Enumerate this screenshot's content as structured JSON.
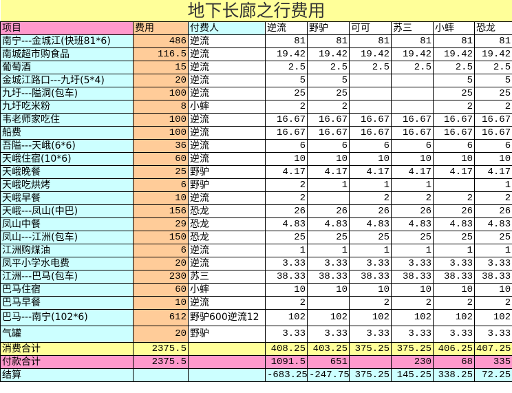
{
  "title": "地下长廊之行费用",
  "headers": {
    "item": "项目",
    "cost": "费用",
    "payer": "付费人",
    "people": [
      "逆流",
      "野驴",
      "可可",
      "苏三",
      "小蟀",
      "恐龙"
    ]
  },
  "rows": [
    {
      "item": "南宁---金城江(快班81*6)",
      "cost": "486",
      "payer": "逆流",
      "shares": [
        "81",
        "81",
        "81",
        "81",
        "81",
        "81"
      ]
    },
    {
      "item": "南城超市购食品",
      "cost": "116.5",
      "payer": "逆流",
      "shares": [
        "19.42",
        "19.42",
        "19.42",
        "19.42",
        "19.42",
        "19.42"
      ]
    },
    {
      "item": "葡萄酒",
      "cost": "15",
      "payer": "逆流",
      "shares": [
        "2.5",
        "2.5",
        "2.5",
        "2.5",
        "2.5",
        "2.5"
      ]
    },
    {
      "item": "金城江路口---九圩(5*4)",
      "cost": "20",
      "payer": "逆流",
      "shares": [
        "5",
        "5",
        "",
        "",
        "5",
        "5"
      ]
    },
    {
      "item": "九圩---隘洞(包车)",
      "cost": "100",
      "payer": "逆流",
      "shares": [
        "25",
        "25",
        "",
        "",
        "25",
        "25"
      ]
    },
    {
      "item": "九圩吃米粉",
      "cost": "8",
      "payer": "小蟀",
      "shares": [
        "2",
        "2",
        "",
        "",
        "2",
        "2"
      ]
    },
    {
      "item": "韦老师家吃住",
      "cost": "100",
      "payer": "逆流",
      "shares": [
        "16.67",
        "16.67",
        "16.67",
        "16.67",
        "16.67",
        "16.67"
      ]
    },
    {
      "item": "船费",
      "cost": "100",
      "payer": "逆流",
      "shares": [
        "16.67",
        "16.67",
        "16.67",
        "16.67",
        "16.67",
        "16.67"
      ]
    },
    {
      "item": "吾隘---天峨(6*6)",
      "cost": "36",
      "payer": "逆流",
      "shares": [
        "6",
        "6",
        "6",
        "6",
        "6",
        "6"
      ]
    },
    {
      "item": "天峨住宿(10*6)",
      "cost": "60",
      "payer": "逆流",
      "shares": [
        "10",
        "10",
        "10",
        "10",
        "10",
        "10"
      ]
    },
    {
      "item": "天峨晚餐",
      "cost": "25",
      "payer": "野驴",
      "shares": [
        "4.17",
        "4.17",
        "4.17",
        "4.17",
        "4.17",
        "4.17"
      ]
    },
    {
      "item": "天峨吃烘烤",
      "cost": "6",
      "payer": "野驴",
      "shares": [
        "2",
        "1",
        "1",
        "1",
        "",
        "1"
      ]
    },
    {
      "item": "天峨早餐",
      "cost": "10",
      "payer": "逆流",
      "shares": [
        "2",
        "",
        "2",
        "2",
        "2",
        "2"
      ]
    },
    {
      "item": "天峨---凤山(中巴)",
      "cost": "156",
      "payer": "恐龙",
      "shares": [
        "26",
        "26",
        "26",
        "26",
        "26",
        "26"
      ]
    },
    {
      "item": "凤山中餐",
      "cost": "29",
      "payer": "恐龙",
      "shares": [
        "4.83",
        "4.83",
        "4.83",
        "4.83",
        "4.83",
        "4.83"
      ]
    },
    {
      "item": "凤山---江洲(包车)",
      "cost": "150",
      "payer": "恐龙",
      "shares": [
        "25",
        "25",
        "25",
        "25",
        "25",
        "25"
      ]
    },
    {
      "item": "江洲购煤油",
      "cost": "6",
      "payer": "逆流",
      "shares": [
        "1",
        "1",
        "1",
        "1",
        "1",
        "1"
      ]
    },
    {
      "item": "凤平小学水电费",
      "cost": "20",
      "payer": "逆流",
      "shares": [
        "3.33",
        "3.33",
        "3.33",
        "3.33",
        "3.33",
        "3.33"
      ]
    },
    {
      "item": "江洲---巴马(包车)",
      "cost": "230",
      "payer": "苏三",
      "shares": [
        "38.33",
        "38.33",
        "38.33",
        "38.33",
        "38.33",
        "38.33"
      ]
    },
    {
      "item": "巴马住宿",
      "cost": "60",
      "payer": "小蟀",
      "shares": [
        "10",
        "10",
        "10",
        "10",
        "10",
        "10"
      ]
    },
    {
      "item": "巴马早餐",
      "cost": "10",
      "payer": "逆流",
      "shares": [
        "2",
        "",
        "2",
        "2",
        "2",
        "2"
      ]
    },
    {
      "item": "巴马---南宁(102*6)",
      "cost": "612",
      "payer": "野驴600逆流12",
      "shares": [
        "102",
        "102",
        "102",
        "102",
        "102",
        "102"
      ],
      "tall": true
    },
    {
      "item": "气罐",
      "cost": "20",
      "payer": "野驴",
      "shares": [
        "3.33",
        "3.33",
        "3.33",
        "3.33",
        "3.33",
        "3.33"
      ],
      "tall": true
    }
  ],
  "totals": {
    "consume": {
      "label": "消费合计",
      "cost": "2375.5",
      "shares": [
        "408.25",
        "403.25",
        "375.25",
        "375.25",
        "406.25",
        "407.25"
      ]
    },
    "paid": {
      "label": "付款合计",
      "cost": "2375.5",
      "shares": [
        "1091.5",
        "651",
        "",
        "230",
        "68",
        "335"
      ]
    },
    "settle": {
      "label": "结算",
      "cost": "",
      "shares": [
        "-683.25",
        "-247.75",
        "375.25",
        "145.25",
        "338.25",
        "72.25"
      ]
    }
  },
  "colors": {
    "title_bg": "#ffff99",
    "item_bg": "#ccffff",
    "cost_bg": "#ffcc99",
    "header_item_bg": "#ff99cc",
    "paid_bg": "#ff99cc",
    "consume_bg": "#ffff99",
    "settle_bg": "#ccffff"
  }
}
